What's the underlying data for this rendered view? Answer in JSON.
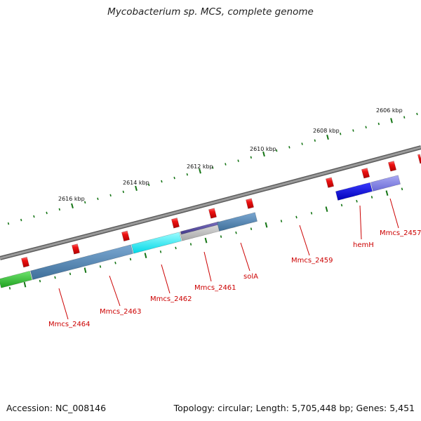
{
  "title": "Mycobacterium sp. MCS, complete genome",
  "footer": {
    "accession": "Accession: NC_008146",
    "summary": "Topology: circular; Length: 5,705,448 bp; Genes: 5,451"
  },
  "colors": {
    "backbone": "#808080",
    "tick": "#157515",
    "cds_forward": "#ee1111",
    "label": "#cc0000"
  },
  "kbp_labels": [
    "2606 kbp",
    "2608 kbp",
    "2610 kbp",
    "2612 kbp",
    "2614 kbp",
    "2616 kbp"
  ],
  "gene_labels": [
    "Mmcs_2464",
    "Mmcs_2463",
    "Mmcs_2462",
    "Mmcs_2461",
    "solA",
    "Mmcs_2459",
    "hemH",
    "Mmcs_2457"
  ]
}
